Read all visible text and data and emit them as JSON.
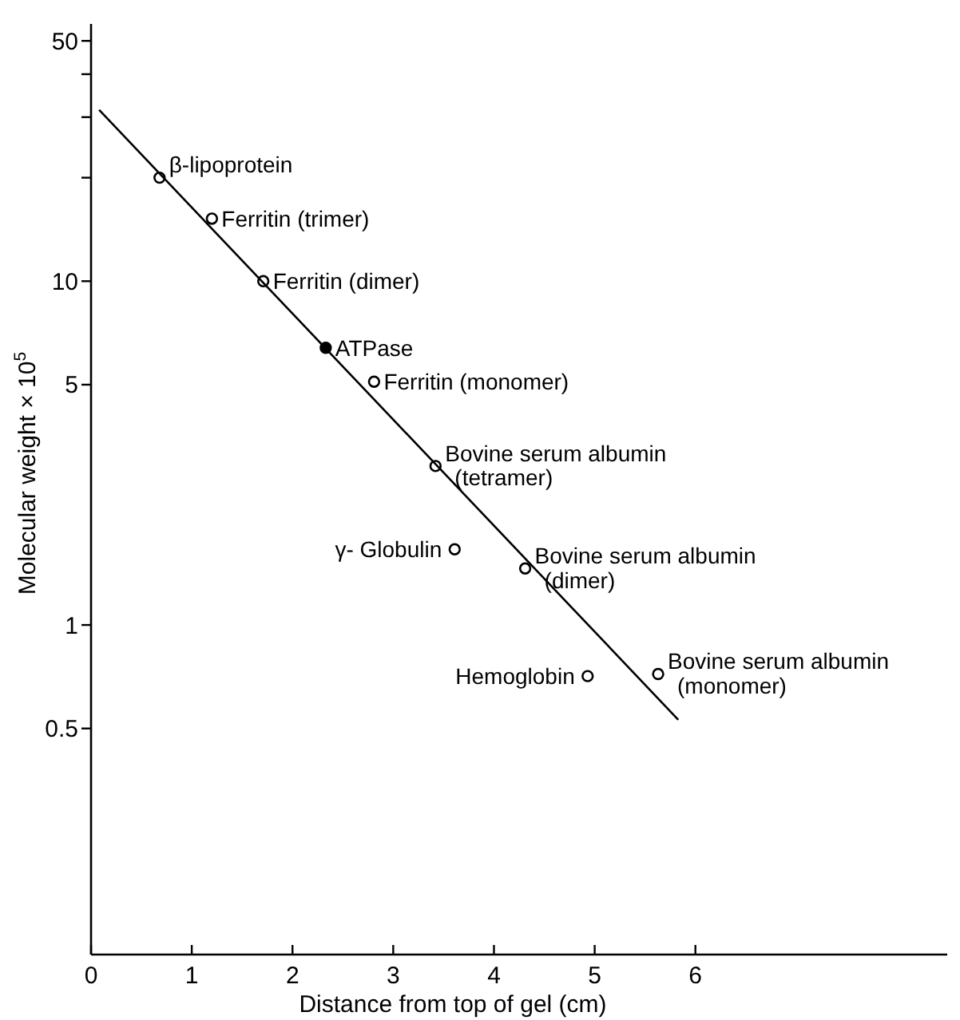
{
  "chart_data": {
    "type": "scatter",
    "xlabel": "Distance from top of gel (cm)",
    "ylabel": "Molecular weight × 10$^{5}$",
    "log": "y",
    "xlim": [
      0,
      8.5
    ],
    "ylim": [
      0.11,
      56
    ],
    "xticks": [
      0,
      1,
      2,
      3,
      4,
      5,
      6
    ],
    "yticks": [
      0.5,
      1,
      5,
      10,
      {
        "value": 20,
        "label": null
      },
      {
        "value": 30,
        "label": null
      },
      {
        "value": 40,
        "label": null
      },
      50
    ],
    "grid": false,
    "marker": "circle",
    "series": [
      {
        "color": "#000000",
        "x": [
          0.68,
          1.2,
          1.71,
          2.81,
          3.42,
          3.61,
          4.31,
          4.93,
          5.63
        ],
        "values": [
          20,
          15.2,
          10,
          5.1,
          2.9,
          1.66,
          1.46,
          0.71,
          0.72
        ]
      },
      {
        "color": "#000000",
        "x": [
          2.33
        ],
        "values": [
          6.4
        ]
      },
      {
        "type": "line",
        "color": "#000000",
        "marker": "none",
        "x": [
          0.08,
          5.83
        ],
        "values": [
          31.5,
          0.53
        ]
      }
    ],
    "annotations": [
      {
        "text": "β-lipoprotein",
        "x": 0.68,
        "y": 20
      },
      {
        "text": "Ferritin (trimer)",
        "x": 1.2,
        "y": 15.2
      },
      {
        "text": "Ferritin (dimer)",
        "x": 1.71,
        "y": 10
      },
      {
        "text": "ATPase",
        "x": 2.33,
        "y": 6.4
      },
      {
        "text": "Ferritin (monomer)",
        "x": 2.81,
        "y": 5.1
      },
      {
        "text": "Bovine serum albumin\n(tetramer)",
        "x": 3.42,
        "y": 2.9
      },
      {
        "text": "γ- Globulin",
        "x": 3.61,
        "y": 1.66
      },
      {
        "text": "Bovine serum albumin\n(dimer)",
        "x": 4.31,
        "y": 1.46
      },
      {
        "text": "Hemoglobin",
        "x": 4.93,
        "y": 0.71
      },
      {
        "text": "Bovine serum albumin\n(monomer)",
        "x": 5.63,
        "y": 0.72
      }
    ]
  }
}
